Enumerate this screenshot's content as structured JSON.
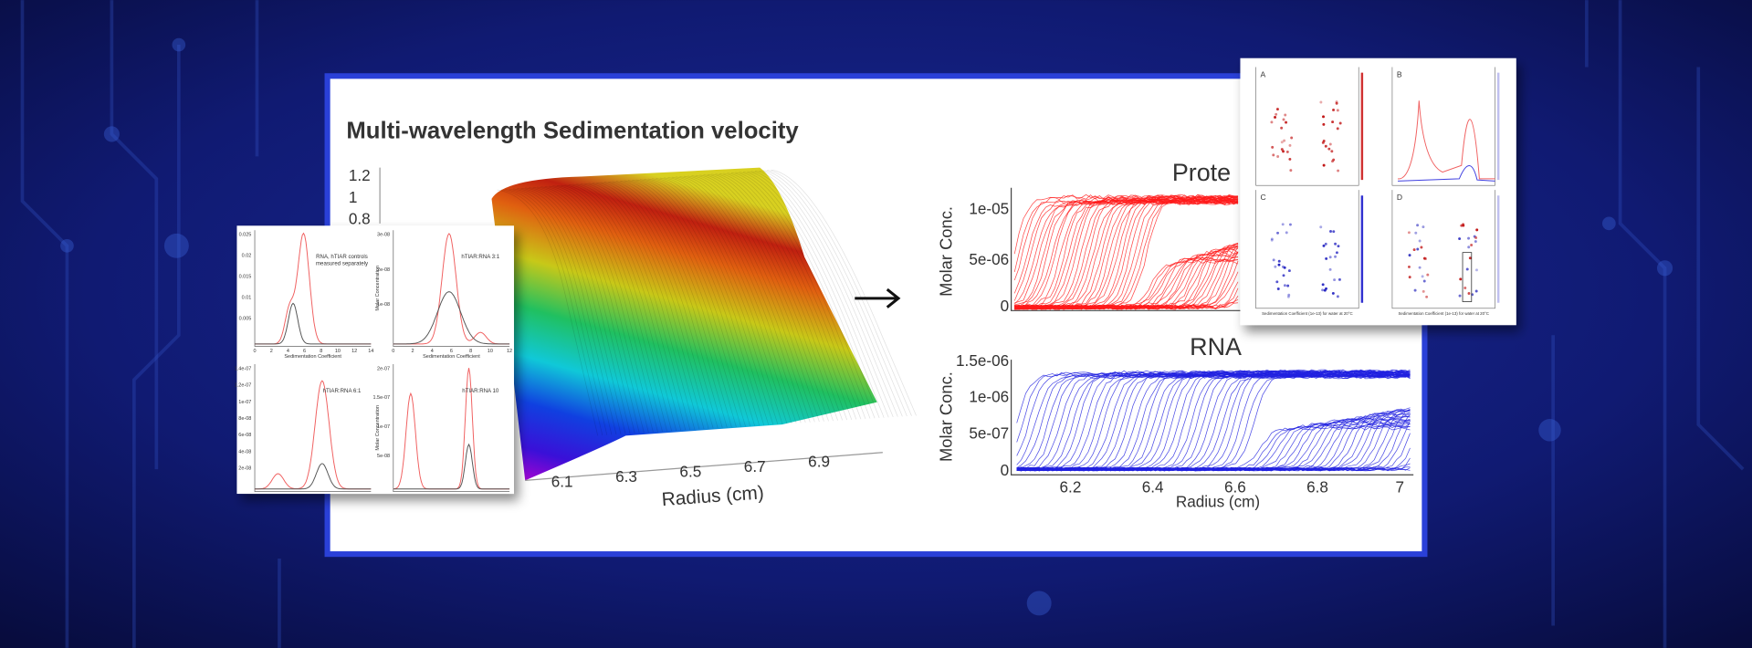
{
  "title": "Multi-wavelength Sedimentation velocity",
  "surface_plot": {
    "z_ticks": [
      "1.2",
      "1",
      "0.8"
    ],
    "x_ticks": [
      "6.1",
      "6.3",
      "6.5",
      "6.7",
      "6.9"
    ],
    "x_label": "Radius (cm)"
  },
  "protein_panel": {
    "title": "Prote",
    "y_label": "Molar Conc.",
    "y_ticks": [
      "1e-05",
      "5e-06",
      "0"
    ]
  },
  "rna_panel": {
    "title": "RNA",
    "y_label": "Molar Conc.",
    "y_ticks": [
      "1.5e-06",
      "1e-06",
      "5e-07",
      "0"
    ],
    "x_ticks": [
      "6.2",
      "6.4",
      "6.6",
      "6.8",
      "7"
    ],
    "x_label": "Radius (cm)"
  },
  "left_inset": {
    "panels": [
      {
        "annotation": [
          "RNA, hTIAR controls",
          "measured separately"
        ],
        "x_label": "Sedimentation Coefficient",
        "y_ticks": [
          "0.025",
          "0.02",
          "0.015",
          "0.01",
          "0.005"
        ],
        "x_ticks": [
          "0",
          "2",
          "4",
          "6",
          "8",
          "10",
          "12",
          "14"
        ]
      },
      {
        "annotation": [
          "hTIAR:RNA 3:1"
        ],
        "x_label": "Sedimentation Coefficient",
        "y_label": "Molar Concentration",
        "y_ticks": [
          "3e-08",
          "2e-08",
          "1e-08"
        ],
        "x_ticks": [
          "0",
          "2",
          "4",
          "6",
          "8",
          "10",
          "12"
        ]
      },
      {
        "annotation": [
          "hTIAR:RNA 6:1"
        ],
        "y_ticks": [
          "1.4e-07",
          "1.2e-07",
          "1e-07",
          "8e-08",
          "6e-08",
          "4e-08",
          "2e-08"
        ]
      },
      {
        "annotation": [
          "hTIAR:RNA 10"
        ],
        "y_label": "Molar Concentration",
        "y_ticks": [
          "2e-07",
          "1.5e-07",
          "1e-07",
          "5e-08"
        ]
      }
    ]
  },
  "right_inset": {
    "panels": [
      {
        "label": "A"
      },
      {
        "label": "B"
      },
      {
        "label": "C",
        "x_label": "Sedimentation Coefficient (1e-13) for water at 20°C"
      },
      {
        "label": "D",
        "x_label": "Sedimentation Coefficient (1e-13) for water at 20°C"
      }
    ]
  }
}
